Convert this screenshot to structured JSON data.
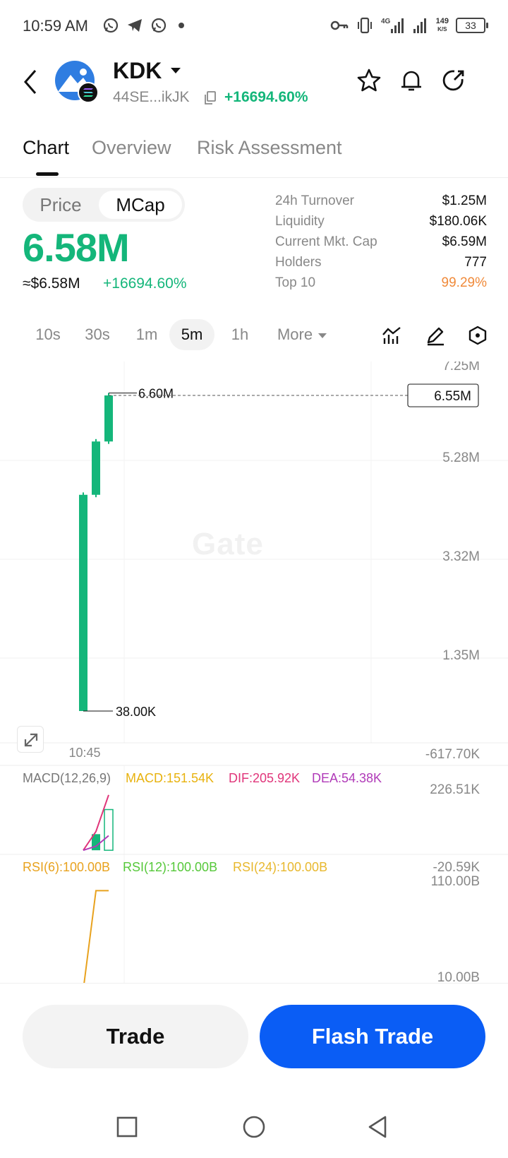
{
  "status_bar": {
    "time": "10:59 AM",
    "network": "4G",
    "net_speed_value": "149",
    "net_speed_unit": "K/S",
    "battery": "33",
    "icons": [
      "whatsapp-icon",
      "telegram-icon",
      "whatsapp-icon",
      "dot-icon",
      "key-icon",
      "vibrate-icon",
      "signal-icon",
      "signal-icon"
    ]
  },
  "header": {
    "token_name": "KDK",
    "address": "44SE...ikJK",
    "change": "+16694.60%",
    "icons": [
      "back-icon",
      "star-icon",
      "bell-icon",
      "share-icon"
    ]
  },
  "tabs": [
    {
      "label": "Chart",
      "active": true
    },
    {
      "label": "Overview",
      "active": false
    },
    {
      "label": "Risk Assessment",
      "active": false
    }
  ],
  "price_section": {
    "toggle": {
      "price": "Price",
      "mcap": "MCap",
      "selected": "MCap"
    },
    "main_value": "6.58M",
    "usd_value": "≈$6.58M",
    "change": "+16694.60%"
  },
  "stats": [
    {
      "label": "24h  Turnover",
      "value": "$1.25M"
    },
    {
      "label": "Liquidity",
      "value": "$180.06K"
    },
    {
      "label": "Current Mkt. Cap",
      "value": "$6.59M"
    },
    {
      "label": "Holders",
      "value": "777"
    },
    {
      "label": "Top 10",
      "value": "99.29%"
    }
  ],
  "intervals": {
    "items": [
      "10s",
      "30s",
      "1m",
      "5m",
      "1h"
    ],
    "active": "5m",
    "more": "More"
  },
  "colors": {
    "up": "#14b67a",
    "accent": "#0a5df5",
    "warn": "#f08a3a",
    "macd": "#e8b20e",
    "dif": "#e0357a",
    "dea": "#b03ab8",
    "rsi6": "#e8a21e",
    "rsi12": "#56c83a",
    "rsi24": "#e8b82e"
  },
  "chart_data": [
    {
      "type": "candlestick",
      "title": "",
      "y_ticks": [
        "7.25M",
        "5.28M",
        "3.32M",
        "1.35M",
        "-617.70K"
      ],
      "ylim": [
        -617700,
        7250000
      ],
      "x_ticks": [
        "10:45"
      ],
      "high_label": "6.60M",
      "low_label": "38.00K",
      "last_price_label": "6.55M",
      "last_price": 6550000,
      "candles": [
        {
          "open": 38000,
          "close": 4500000,
          "high": 4550000,
          "low": 38000
        },
        {
          "open": 4500000,
          "close": 5600000,
          "high": 5650000,
          "low": 4450000
        },
        {
          "open": 5600000,
          "close": 6550000,
          "high": 6600000,
          "low": 5550000
        }
      ]
    },
    {
      "type": "bar",
      "title": "MACD(12,26,9)",
      "macd_label": "MACD:151.54K",
      "dif_label": "DIF:205.92K",
      "dea_label": "DEA:54.38K",
      "y_ticks": [
        "226.51K",
        "-20.59K"
      ],
      "ylim": [
        -20590,
        226510
      ],
      "macd": [
        0,
        60000,
        151540
      ],
      "dif": [
        0,
        70000,
        205920
      ],
      "dea": [
        0,
        15000,
        54380
      ]
    },
    {
      "type": "line",
      "rsi6_label": "RSI(6):100.00B",
      "rsi12_label": "RSI(12):100.00B",
      "rsi24_label": "RSI(24):100.00B",
      "y_ticks": [
        "110.00B",
        "10.00B"
      ],
      "ylim": [
        10,
        110
      ],
      "rsi": [
        0,
        100,
        100
      ]
    }
  ],
  "watermark": "Gate",
  "buttons": {
    "trade": "Trade",
    "flash_trade": "Flash Trade"
  }
}
